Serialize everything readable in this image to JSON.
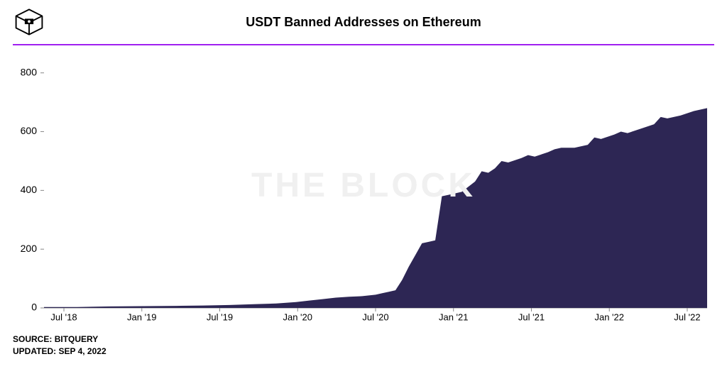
{
  "chart": {
    "type": "area",
    "title": "USDT Banned Addresses on Ethereum",
    "watermark_text": "THE BLOCK",
    "watermark_color": "#f0f0f0",
    "title_fontsize": 18,
    "title_fontweight": 600,
    "background_color": "#ffffff",
    "accent_line_color": "#a020f0",
    "area_fill_color": "#2d2654",
    "axis_color": "#888888",
    "text_color": "#000000",
    "label_fontsize": 14,
    "xlabel_fontsize": 13,
    "ylim": [
      0,
      850
    ],
    "ytick_step": 200,
    "yticks": [
      0,
      200,
      400,
      600,
      800
    ],
    "xticks": [
      "Jul '18",
      "Jan '19",
      "Jul '19",
      "Jan '20",
      "Jul '20",
      "Jan '21",
      "Jul '21",
      "Jan '22",
      "Jul '22"
    ],
    "x_domain": [
      0,
      100
    ],
    "series": [
      {
        "x": 0,
        "y": 3
      },
      {
        "x": 5,
        "y": 3
      },
      {
        "x": 10,
        "y": 5
      },
      {
        "x": 15,
        "y": 6
      },
      {
        "x": 20,
        "y": 7
      },
      {
        "x": 24,
        "y": 8
      },
      {
        "x": 28,
        "y": 10
      },
      {
        "x": 32,
        "y": 13
      },
      {
        "x": 35,
        "y": 15
      },
      {
        "x": 38,
        "y": 20
      },
      {
        "x": 40,
        "y": 25
      },
      {
        "x": 42,
        "y": 30
      },
      {
        "x": 44,
        "y": 35
      },
      {
        "x": 46,
        "y": 38
      },
      {
        "x": 48,
        "y": 40
      },
      {
        "x": 50,
        "y": 45
      },
      {
        "x": 51,
        "y": 50
      },
      {
        "x": 52,
        "y": 55
      },
      {
        "x": 53,
        "y": 60
      },
      {
        "x": 54,
        "y": 95
      },
      {
        "x": 55,
        "y": 140
      },
      {
        "x": 56,
        "y": 180
      },
      {
        "x": 57,
        "y": 220
      },
      {
        "x": 58,
        "y": 225
      },
      {
        "x": 59,
        "y": 230
      },
      {
        "x": 60,
        "y": 380
      },
      {
        "x": 61,
        "y": 385
      },
      {
        "x": 62,
        "y": 390
      },
      {
        "x": 63,
        "y": 395
      },
      {
        "x": 65,
        "y": 430
      },
      {
        "x": 66,
        "y": 465
      },
      {
        "x": 67,
        "y": 460
      },
      {
        "x": 68,
        "y": 475
      },
      {
        "x": 69,
        "y": 500
      },
      {
        "x": 70,
        "y": 495
      },
      {
        "x": 72,
        "y": 510
      },
      {
        "x": 73,
        "y": 520
      },
      {
        "x": 74,
        "y": 515
      },
      {
        "x": 76,
        "y": 530
      },
      {
        "x": 77,
        "y": 540
      },
      {
        "x": 78,
        "y": 545
      },
      {
        "x": 80,
        "y": 545
      },
      {
        "x": 82,
        "y": 555
      },
      {
        "x": 83,
        "y": 580
      },
      {
        "x": 84,
        "y": 575
      },
      {
        "x": 86,
        "y": 590
      },
      {
        "x": 87,
        "y": 600
      },
      {
        "x": 88,
        "y": 595
      },
      {
        "x": 90,
        "y": 610
      },
      {
        "x": 92,
        "y": 625
      },
      {
        "x": 93,
        "y": 650
      },
      {
        "x": 94,
        "y": 645
      },
      {
        "x": 96,
        "y": 655
      },
      {
        "x": 98,
        "y": 670
      },
      {
        "x": 100,
        "y": 680
      }
    ]
  },
  "footer": {
    "source_label": "SOURCE:",
    "source_value": "BITQUERY",
    "updated_label": "UPDATED:",
    "updated_value": "SEP 4, 2022"
  }
}
